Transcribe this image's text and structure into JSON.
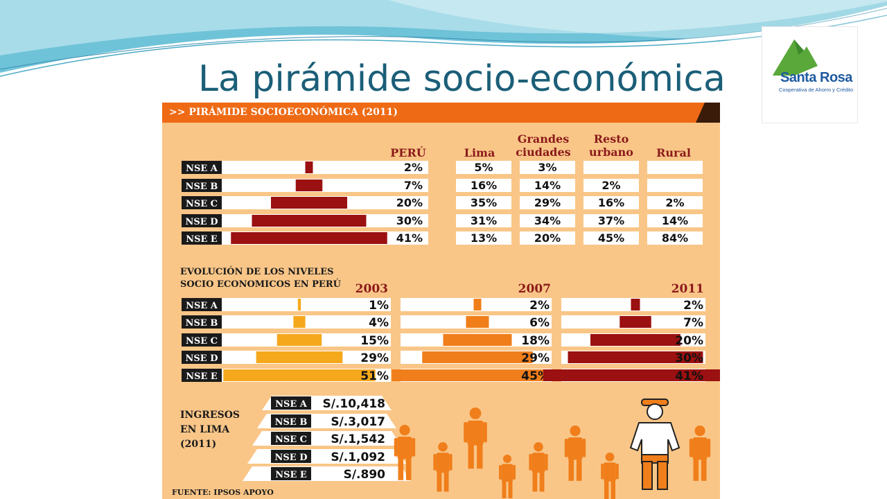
{
  "slide": {
    "title": "La pirámide socio-económica",
    "logo": {
      "name": "Santa Rosa",
      "tagline": "Cooperativa de Ahorro y Crédito"
    }
  },
  "infographic": {
    "header": ">> PIRÁMIDE SOCIOECONÓMICA (2011)",
    "source": "FUENTE: IPSOS APOYO",
    "colors": {
      "background": "#f9c688",
      "header": "#ee6a15",
      "dark_red": "#9b1010",
      "orange": "#f07e1a",
      "amber": "#f5a81c",
      "label_bg": "#1a1a1a"
    }
  },
  "chart_data": [
    {
      "type": "table",
      "title": "",
      "row_labels": [
        "NSE A",
        "NSE B",
        "NSE C",
        "NSE D",
        "NSE E"
      ],
      "columns": [
        {
          "name": "PERÚ",
          "values": [
            "2%",
            "7%",
            "20%",
            "30%",
            "41%"
          ]
        },
        {
          "name": "Lima",
          "values": [
            "5%",
            "16%",
            "35%",
            "31%",
            "13%"
          ]
        },
        {
          "name": "Grandes ciudades",
          "values": [
            "3%",
            "14%",
            "29%",
            "34%",
            "20%"
          ]
        },
        {
          "name": "Resto urbano",
          "values": [
            "",
            "2%",
            "16%",
            "37%",
            "45%"
          ]
        },
        {
          "name": "Rural",
          "values": [
            "",
            "",
            "2%",
            "14%",
            "84%"
          ]
        }
      ],
      "pyramid_bars": {
        "series": "PERÚ",
        "values": [
          2,
          7,
          20,
          30,
          41
        ]
      }
    },
    {
      "type": "bar",
      "title": "EVOLUCIÓN DE LOS NIVELES SOCIO ECONOMICOS EN PERÚ",
      "categories": [
        "NSE A",
        "NSE B",
        "NSE C",
        "NSE D",
        "NSE E"
      ],
      "series": [
        {
          "name": "2003",
          "values": [
            1,
            4,
            15,
            29,
            51
          ],
          "labels": [
            "1%",
            "4%",
            "15%",
            "29%",
            "51%"
          ],
          "color": "#f5a81c"
        },
        {
          "name": "2007",
          "values": [
            2,
            6,
            18,
            29,
            45
          ],
          "labels": [
            "2%",
            "6%",
            "18%",
            "29%",
            "45%"
          ],
          "color": "#f07e1a"
        },
        {
          "name": "2011",
          "values": [
            2,
            7,
            20,
            30,
            41
          ],
          "labels": [
            "2%",
            "7%",
            "20%",
            "30%",
            "41%"
          ],
          "color": "#9b1010"
        }
      ]
    },
    {
      "type": "table",
      "title": "INGRESOS EN LIMA (2011)",
      "categories": [
        "NSE A",
        "NSE B",
        "NSE C",
        "NSE D",
        "NSE E"
      ],
      "values": [
        "S/.10,418",
        "S/.3,017",
        "S/.1,542",
        "S/.1,092",
        "S/.890"
      ]
    }
  ]
}
